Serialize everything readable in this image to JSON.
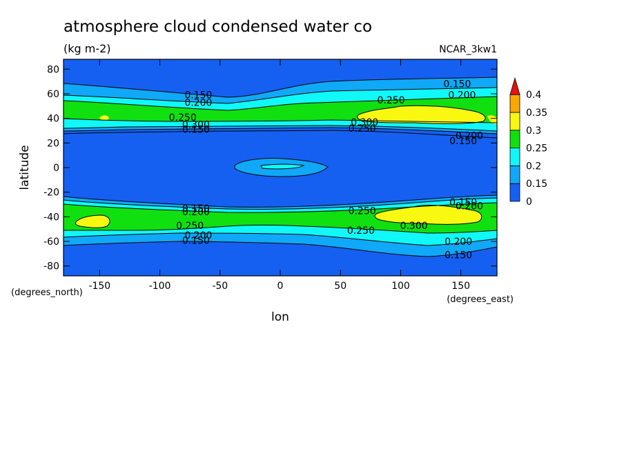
{
  "chart_data": {
    "type": "heatmap",
    "title": "atmosphere cloud condensed water co",
    "units": "(kg m-2)",
    "model": "NCAR_3kw1",
    "xlabel": "lon",
    "ylabel": "latitude",
    "x_units": "(degrees_east)",
    "y_units": "(degrees_north)",
    "xlim": [
      -180,
      180
    ],
    "ylim": [
      -88,
      88
    ],
    "x_ticks": [
      -150,
      -100,
      -50,
      0,
      50,
      100,
      150
    ],
    "x_tick_labels": [
      "-150",
      "-100",
      "-50",
      "0",
      "50",
      "100",
      "150"
    ],
    "y_ticks": [
      -80,
      -60,
      -40,
      -20,
      0,
      20,
      40,
      60,
      80
    ],
    "y_tick_labels": [
      "-80",
      "-60",
      "-40",
      "-20",
      "0",
      "20",
      "40",
      "60",
      "80"
    ],
    "colorbar": {
      "levels": [
        0,
        0.15,
        0.2,
        0.25,
        0.3,
        0.35,
        0.4
      ],
      "labels": [
        "0",
        "0.15",
        "0.2",
        "0.25",
        "0.3",
        "0.35",
        "0.4"
      ],
      "colors": [
        "#1560f0",
        "#10a8f8",
        "#10f8f8",
        "#10e010",
        "#f8f810",
        "#f8a800",
        "#e81010"
      ]
    },
    "contour_labels": [
      {
        "text": "0.150",
        "lon": -68,
        "lat": 59
      },
      {
        "text": "0.200",
        "lon": -68,
        "lat": 53
      },
      {
        "text": "0.250",
        "lon": -81,
        "lat": 41
      },
      {
        "text": "0.300",
        "lon": -70,
        "lat": 35
      },
      {
        "text": "0.150",
        "lon": -70,
        "lat": 31
      },
      {
        "text": "0.150",
        "lon": 147,
        "lat": 68
      },
      {
        "text": "0.200",
        "lon": 151,
        "lat": 59
      },
      {
        "text": "0.250",
        "lon": 92,
        "lat": 55
      },
      {
        "text": "0.300",
        "lon": 70,
        "lat": 37
      },
      {
        "text": "0.250",
        "lon": 68,
        "lat": 32
      },
      {
        "text": "0.200",
        "lon": 157,
        "lat": 26
      },
      {
        "text": "0.150",
        "lon": 152,
        "lat": 22
      },
      {
        "text": "0.150",
        "lon": -70,
        "lat": -33
      },
      {
        "text": "0.150",
        "lon": 152,
        "lat": -28
      },
      {
        "text": "0.200",
        "lon": -70,
        "lat": -36
      },
      {
        "text": "0.200",
        "lon": 157,
        "lat": -31
      },
      {
        "text": "0.250",
        "lon": 68,
        "lat": -35
      },
      {
        "text": "0.250",
        "lon": -75,
        "lat": -47
      },
      {
        "text": "0.300",
        "lon": 111,
        "lat": -47
      },
      {
        "text": "0.250",
        "lon": 67,
        "lat": -51
      },
      {
        "text": "0.200",
        "lon": -68,
        "lat": -55
      },
      {
        "text": "0.150",
        "lon": -70,
        "lat": -59
      },
      {
        "text": "0.200",
        "lon": 148,
        "lat": -60
      },
      {
        "text": "0.150",
        "lon": 148,
        "lat": -71
      }
    ]
  }
}
